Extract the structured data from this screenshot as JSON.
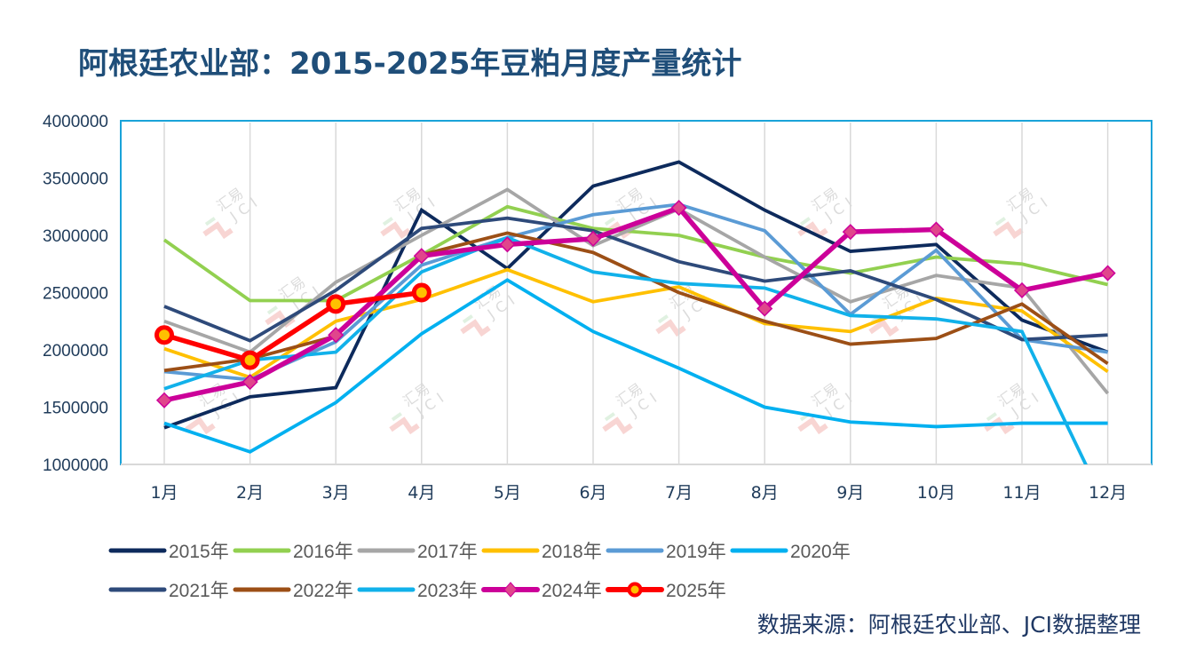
{
  "title": "阿根廷农业部：2015-2025年豆粕月度产量统计",
  "source_note": "数据来源：阿根廷农业部、JCI数据整理",
  "watermark": {
    "text_cn": "汇易",
    "text_en": "JCI"
  },
  "chart_data": {
    "type": "line",
    "title": "阿根廷农业部：2015-2025年豆粕月度产量统计",
    "xlabel": "",
    "ylabel": "",
    "categories": [
      "1月",
      "2月",
      "3月",
      "4月",
      "5月",
      "6月",
      "7月",
      "8月",
      "9月",
      "10月",
      "11月",
      "12月"
    ],
    "yticks": [
      "1000000",
      "1500000",
      "2000000",
      "2500000",
      "3000000",
      "3500000",
      "4000000"
    ],
    "ylim": [
      1000000,
      4000000
    ],
    "grid": "vertical",
    "legend_position": "bottom",
    "series": [
      {
        "name": "2015年",
        "color": "#0d2a5c",
        "marker": "none",
        "values": [
          1320000,
          1590000,
          1670000,
          3220000,
          2710000,
          3430000,
          3640000,
          3220000,
          2860000,
          2920000,
          2260000,
          1980000
        ]
      },
      {
        "name": "2016年",
        "color": "#92d050",
        "marker": "none",
        "values": [
          2960000,
          2430000,
          2430000,
          2830000,
          3250000,
          3060000,
          3000000,
          2810000,
          2670000,
          2810000,
          2750000,
          2570000
        ]
      },
      {
        "name": "2017年",
        "color": "#a6a6a6",
        "marker": "none",
        "values": [
          2250000,
          1980000,
          2590000,
          3000000,
          3400000,
          2910000,
          3230000,
          2810000,
          2420000,
          2650000,
          2540000,
          1620000
        ]
      },
      {
        "name": "2018年",
        "color": "#ffc000",
        "marker": "none",
        "values": [
          2010000,
          1760000,
          2250000,
          2440000,
          2700000,
          2420000,
          2550000,
          2230000,
          2160000,
          2450000,
          2340000,
          1810000
        ]
      },
      {
        "name": "2019年",
        "color": "#5b9bd5",
        "marker": "none",
        "values": [
          1810000,
          1740000,
          2070000,
          2740000,
          2980000,
          3180000,
          3270000,
          3040000,
          2310000,
          2870000,
          2090000,
          1980000
        ]
      },
      {
        "name": "2020年",
        "color": "#00b0f0",
        "marker": "none",
        "values": [
          1360000,
          1110000,
          1540000,
          2140000,
          2610000,
          2160000,
          1840000,
          1500000,
          1370000,
          1330000,
          1360000,
          1360000
        ]
      },
      {
        "name": "2021年",
        "color": "#2e4a7a",
        "marker": "none",
        "values": [
          2380000,
          2080000,
          2520000,
          3060000,
          3150000,
          3040000,
          2770000,
          2600000,
          2690000,
          2440000,
          2090000,
          2130000
        ]
      },
      {
        "name": "2022年",
        "color": "#9c4f16",
        "marker": "none",
        "values": [
          1820000,
          1920000,
          2120000,
          2830000,
          3020000,
          2850000,
          2500000,
          2250000,
          2050000,
          2100000,
          2400000,
          1880000
        ]
      },
      {
        "name": "2023年",
        "color": "#11b1ea",
        "marker": "none",
        "values": [
          1660000,
          1910000,
          1980000,
          2680000,
          2980000,
          2680000,
          2580000,
          2540000,
          2300000,
          2270000,
          2160000,
          600000
        ]
      },
      {
        "name": "2024年",
        "color": "#cc0099",
        "marker": "diamond",
        "marker_color": "#e0468c",
        "values": [
          1560000,
          1720000,
          2130000,
          2820000,
          2920000,
          2970000,
          3240000,
          2360000,
          3030000,
          3050000,
          2520000,
          2670000
        ]
      },
      {
        "name": "2025年",
        "color": "#ff0000",
        "marker": "circle",
        "marker_color": "#ffc000",
        "values": [
          2130000,
          1910000,
          2400000,
          2500000,
          null,
          null,
          null,
          null,
          null,
          null,
          null,
          null
        ]
      }
    ]
  }
}
